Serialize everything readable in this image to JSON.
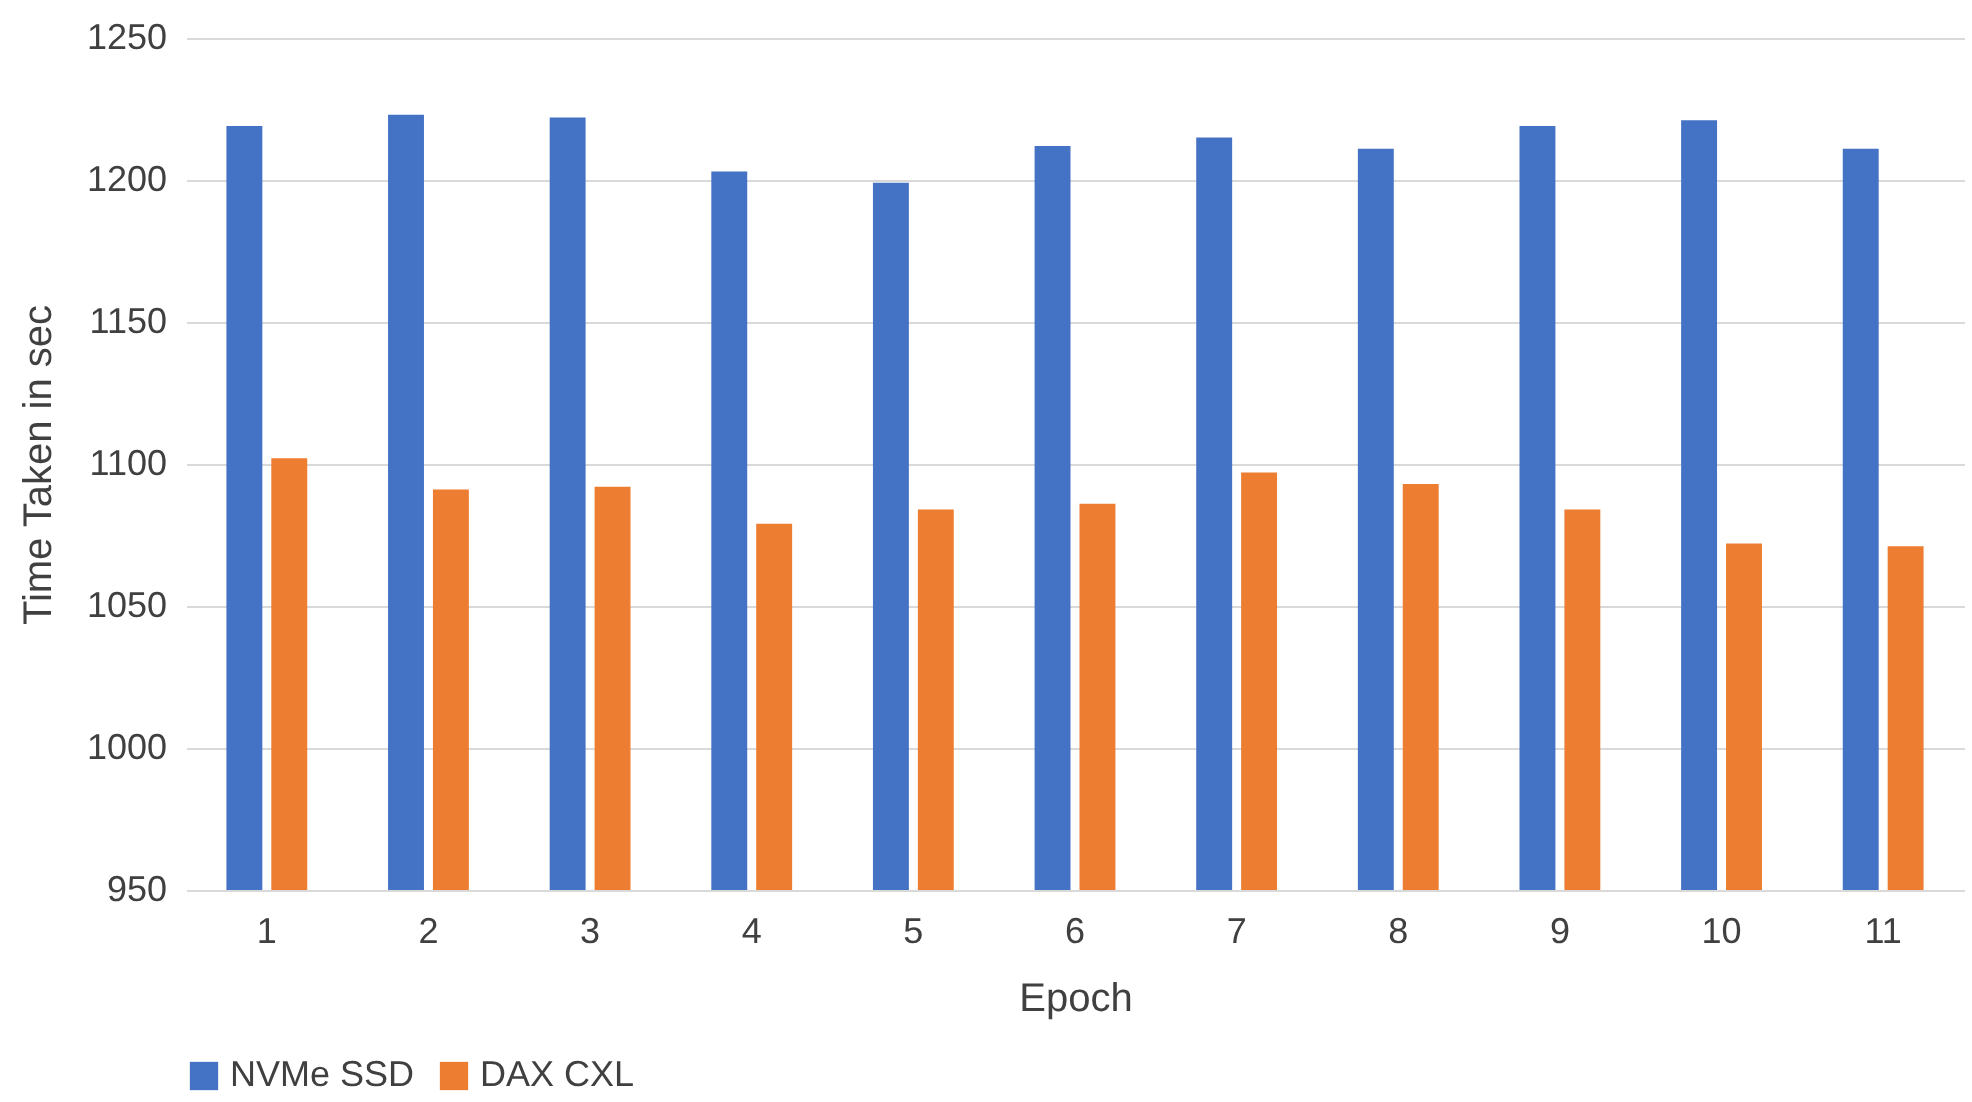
{
  "chart_data": {
    "type": "bar",
    "xlabel": "Epoch",
    "ylabel": "Time Taken in sec",
    "categories": [
      "1",
      "2",
      "3",
      "4",
      "5",
      "6",
      "7",
      "8",
      "9",
      "10",
      "11"
    ],
    "series": [
      {
        "name": "NVMe SSD",
        "color": "#4472c4",
        "values": [
          1219,
          1223,
          1222,
          1203,
          1199,
          1212,
          1215,
          1211,
          1219,
          1221,
          1211
        ]
      },
      {
        "name": "DAX CXL",
        "color": "#ed7d31",
        "values": [
          1102,
          1091,
          1092,
          1079,
          1084,
          1086,
          1097,
          1093,
          1084,
          1072,
          1071
        ]
      }
    ],
    "ylim": [
      950,
      1250
    ],
    "yticks": [
      950,
      1000,
      1050,
      1100,
      1150,
      1200,
      1250
    ],
    "grid": "y",
    "legend": "bottom"
  }
}
